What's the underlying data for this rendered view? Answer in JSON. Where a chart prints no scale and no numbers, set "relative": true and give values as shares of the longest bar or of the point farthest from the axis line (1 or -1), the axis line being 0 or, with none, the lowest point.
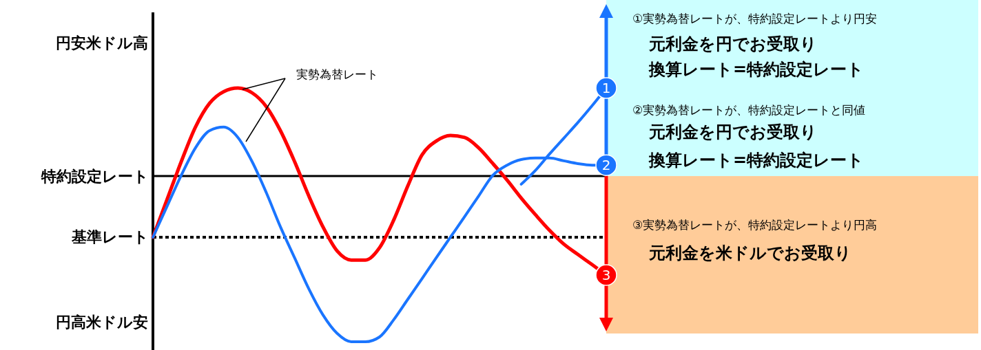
{
  "chart_data": {
    "type": "line",
    "relative": true,
    "categories": [
      null,
      null,
      null,
      null,
      null,
      null,
      null,
      null,
      null,
      null,
      null,
      null,
      null,
      null,
      null,
      null,
      null,
      null,
      null,
      null,
      null,
      null,
      null,
      null,
      null,
      null,
      null,
      null,
      null,
      null,
      null,
      null,
      null
    ],
    "series": [
      {
        "color": "#ff0000",
        "values": [
          0.412,
          0.561,
          0.71,
          0.846,
          0.94,
          0.986,
          1,
          0.981,
          0.927,
          0.832,
          0.71,
          0.575,
          0.453,
          0.358,
          0.322,
          0.322,
          0.371,
          0.48,
          0.615,
          0.737,
          0.791,
          0.813,
          0.805,
          0.764,
          0.702,
          0.637,
          0.566,
          0.501,
          0.439,
          0.385,
          0.344,
          0.304,
          0.263
        ]
      },
      {
        "color": "#1a75ff",
        "values": [
          0.412,
          0.534,
          0.656,
          0.764,
          0.832,
          0.846,
          0.805,
          0.71,
          0.588,
          0.453,
          0.331,
          0.209,
          0.106,
          0.033,
          0,
          0,
          0.019,
          0.087,
          0.168,
          0.249,
          0.331,
          0.412,
          0.493,
          0.575,
          0.656,
          0.696,
          0.718,
          0.724,
          0.724,
          0.713,
          0.702,
          0.696,
          0.696
        ]
      },
      {
        "color": "#1a75ff",
        "values": [
          null,
          null,
          null,
          null,
          null,
          null,
          null,
          null,
          null,
          null,
          null,
          null,
          null,
          null,
          null,
          null,
          null,
          null,
          null,
          null,
          null,
          null,
          null,
          null,
          null,
          null,
          0.621,
          0.675,
          0.74,
          0.802,
          0.864,
          0.93,
          1
        ]
      }
    ],
    "ref_lines": [
      {
        "axis": "y",
        "value": 0.653,
        "label": "特約設定レート",
        "color": "#000000",
        "line_style": "solid"
      },
      {
        "axis": "y",
        "value": 0.412,
        "label": "基準レート",
        "color": "#000000",
        "line_style": "dotted"
      }
    ],
    "annotations": [
      "円安米ドル高",
      "円高米ドル安",
      "実勢為替レート",
      {
        "text": "1",
        "y": 1
      },
      {
        "text": "2",
        "y": 0.696
      },
      {
        "text": "3",
        "y": 0.263
      },
      "①実勢為替レートが、特約設定レートより円安",
      "元利金を円でお受取り",
      "換算レート=特約設定レート",
      "②実勢為替レートが、特約設定レートと同値",
      "元利金を円でお受取り",
      "換算レート=特約設定レート",
      "③実勢為替レートが、特約設定レートより円高",
      "元利金を米ドルでお受取り"
    ]
  }
}
